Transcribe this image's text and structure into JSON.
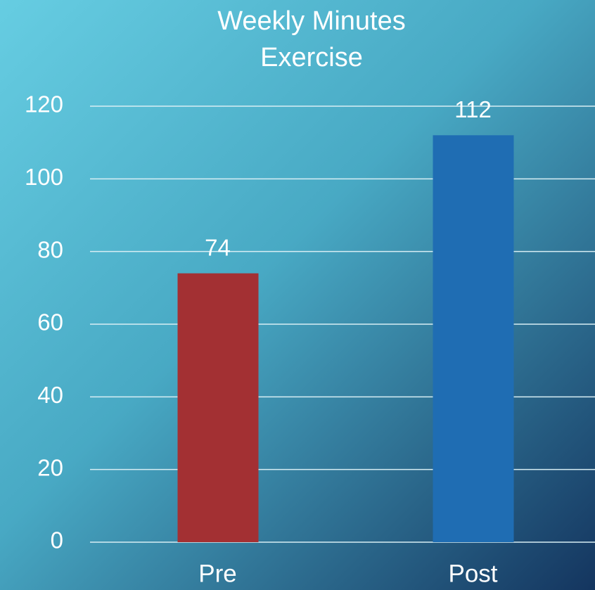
{
  "chart_data": {
    "type": "bar",
    "title": [
      "Weekly Minutes",
      "Exercise"
    ],
    "categories": [
      "Pre",
      "Post"
    ],
    "values": [
      74,
      112
    ],
    "colors": [
      "#a33033",
      "#1f6db3"
    ],
    "ylim": [
      0,
      120
    ],
    "yticks": [
      0,
      20,
      40,
      60,
      80,
      100,
      120
    ],
    "grid": true
  }
}
